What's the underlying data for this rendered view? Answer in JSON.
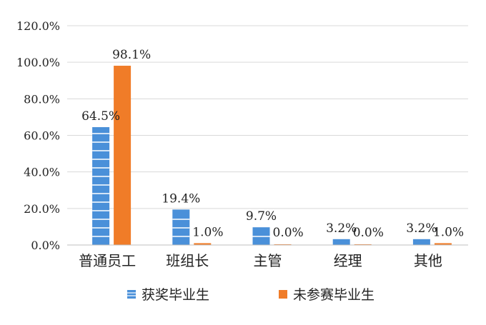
{
  "chart_data": {
    "type": "bar",
    "categories": [
      "普通员工",
      "班组长",
      "主管",
      "经理",
      "其他"
    ],
    "series": [
      {
        "name": "获奖毕业生",
        "values": [
          64.5,
          19.4,
          9.7,
          3.2,
          3.2
        ],
        "labels": [
          "64.5%",
          "19.4%",
          "9.7%",
          "3.2%",
          "3.2%"
        ],
        "color": "#4a90d9"
      },
      {
        "name": "未参赛毕业生",
        "values": [
          98.1,
          1.0,
          0.0,
          0.0,
          1.0
        ],
        "labels": [
          "98.1%",
          "1.0%",
          "0.0%",
          "0.0%",
          "1.0%"
        ],
        "color": "#f07c28"
      }
    ],
    "ylim": [
      0,
      120
    ],
    "yticks": [
      "0.0%",
      "20.0%",
      "40.0%",
      "60.0%",
      "80.0%",
      "100.0%",
      "120.0%"
    ],
    "grid": true,
    "legend_position": "bottom"
  }
}
